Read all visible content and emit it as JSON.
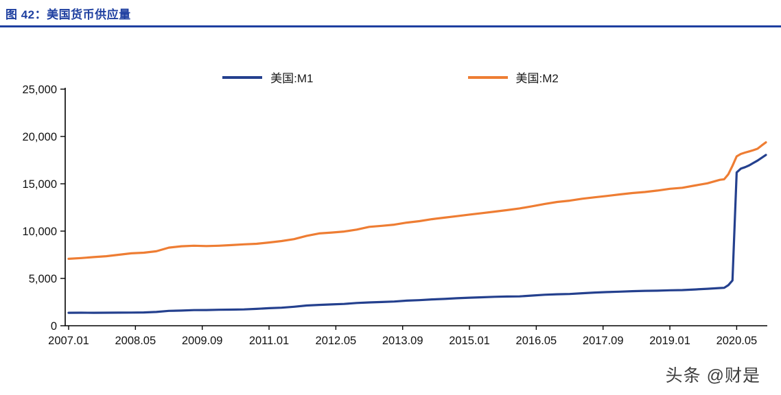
{
  "header": {
    "title": "图 42：美国货币供应量"
  },
  "watermark": "头条 @财是",
  "chart_data": {
    "type": "line",
    "title": "美国货币供应量",
    "xlabel": "",
    "ylabel": "",
    "x_unit": "months since 2007.01",
    "xlim": [
      0,
      167
    ],
    "ylim": [
      0,
      25000
    ],
    "grid": false,
    "legend_position": "top-center",
    "y_ticks": [
      {
        "v": 0,
        "label": "0"
      },
      {
        "v": 5000,
        "label": "5,000"
      },
      {
        "v": 10000,
        "label": "10,000"
      },
      {
        "v": 15000,
        "label": "15,000"
      },
      {
        "v": 20000,
        "label": "20,000"
      },
      {
        "v": 25000,
        "label": "25,000"
      }
    ],
    "x_ticks": [
      {
        "m": 0,
        "label": "2007.01"
      },
      {
        "m": 16,
        "label": "2008.05"
      },
      {
        "m": 32,
        "label": "2009.09"
      },
      {
        "m": 48,
        "label": "2011.01"
      },
      {
        "m": 64,
        "label": "2012.05"
      },
      {
        "m": 80,
        "label": "2013.09"
      },
      {
        "m": 96,
        "label": "2015.01"
      },
      {
        "m": 112,
        "label": "2016.05"
      },
      {
        "m": 128,
        "label": "2017.09"
      },
      {
        "m": 144,
        "label": "2019.01"
      },
      {
        "m": 160,
        "label": "2020.05"
      }
    ],
    "series": [
      {
        "name": "美国:M1",
        "color": "#24408e",
        "points": [
          [
            0,
            1370
          ],
          [
            3,
            1375
          ],
          [
            6,
            1370
          ],
          [
            9,
            1378
          ],
          [
            12,
            1385
          ],
          [
            15,
            1390
          ],
          [
            18,
            1405
          ],
          [
            21,
            1455
          ],
          [
            24,
            1570
          ],
          [
            27,
            1605
          ],
          [
            30,
            1650
          ],
          [
            33,
            1660
          ],
          [
            36,
            1685
          ],
          [
            39,
            1705
          ],
          [
            42,
            1725
          ],
          [
            45,
            1785
          ],
          [
            48,
            1855
          ],
          [
            51,
            1905
          ],
          [
            54,
            2005
          ],
          [
            57,
            2135
          ],
          [
            60,
            2205
          ],
          [
            63,
            2255
          ],
          [
            66,
            2305
          ],
          [
            69,
            2405
          ],
          [
            72,
            2465
          ],
          [
            75,
            2505
          ],
          [
            78,
            2555
          ],
          [
            81,
            2655
          ],
          [
            84,
            2705
          ],
          [
            87,
            2785
          ],
          [
            90,
            2835
          ],
          [
            93,
            2905
          ],
          [
            96,
            2965
          ],
          [
            99,
            3005
          ],
          [
            102,
            3055
          ],
          [
            105,
            3085
          ],
          [
            108,
            3105
          ],
          [
            111,
            3185
          ],
          [
            114,
            3275
          ],
          [
            117,
            3325
          ],
          [
            120,
            3355
          ],
          [
            123,
            3435
          ],
          [
            126,
            3505
          ],
          [
            129,
            3555
          ],
          [
            132,
            3605
          ],
          [
            135,
            3655
          ],
          [
            138,
            3685
          ],
          [
            141,
            3705
          ],
          [
            144,
            3745
          ],
          [
            147,
            3765
          ],
          [
            150,
            3835
          ],
          [
            153,
            3905
          ],
          [
            156,
            3985
          ],
          [
            157,
            4005
          ],
          [
            158,
            4280
          ],
          [
            159,
            4790
          ],
          [
            160,
            16200
          ],
          [
            161,
            16600
          ],
          [
            162,
            16750
          ],
          [
            163,
            16950
          ],
          [
            164,
            17200
          ],
          [
            165,
            17450
          ],
          [
            166,
            17750
          ],
          [
            167,
            18050
          ]
        ]
      },
      {
        "name": "美国:M2",
        "color": "#ee7d33",
        "points": [
          [
            0,
            7070
          ],
          [
            3,
            7150
          ],
          [
            6,
            7250
          ],
          [
            9,
            7350
          ],
          [
            12,
            7500
          ],
          [
            15,
            7650
          ],
          [
            18,
            7720
          ],
          [
            21,
            7870
          ],
          [
            24,
            8250
          ],
          [
            27,
            8400
          ],
          [
            30,
            8460
          ],
          [
            33,
            8420
          ],
          [
            36,
            8460
          ],
          [
            39,
            8520
          ],
          [
            42,
            8600
          ],
          [
            45,
            8660
          ],
          [
            48,
            8800
          ],
          [
            51,
            8950
          ],
          [
            54,
            9150
          ],
          [
            57,
            9500
          ],
          [
            60,
            9750
          ],
          [
            63,
            9850
          ],
          [
            66,
            9960
          ],
          [
            69,
            10160
          ],
          [
            72,
            10450
          ],
          [
            75,
            10560
          ],
          [
            78,
            10680
          ],
          [
            81,
            10900
          ],
          [
            84,
            11050
          ],
          [
            87,
            11260
          ],
          [
            90,
            11420
          ],
          [
            93,
            11580
          ],
          [
            96,
            11750
          ],
          [
            99,
            11900
          ],
          [
            102,
            12060
          ],
          [
            105,
            12220
          ],
          [
            108,
            12400
          ],
          [
            111,
            12620
          ],
          [
            114,
            12870
          ],
          [
            117,
            13080
          ],
          [
            120,
            13220
          ],
          [
            123,
            13420
          ],
          [
            126,
            13570
          ],
          [
            129,
            13720
          ],
          [
            132,
            13880
          ],
          [
            135,
            14020
          ],
          [
            138,
            14130
          ],
          [
            141,
            14280
          ],
          [
            144,
            14470
          ],
          [
            147,
            14580
          ],
          [
            150,
            14820
          ],
          [
            153,
            15050
          ],
          [
            156,
            15420
          ],
          [
            157,
            15480
          ],
          [
            158,
            16000
          ],
          [
            159,
            16900
          ],
          [
            160,
            17900
          ],
          [
            161,
            18150
          ],
          [
            162,
            18300
          ],
          [
            163,
            18420
          ],
          [
            164,
            18550
          ],
          [
            165,
            18700
          ],
          [
            166,
            19050
          ],
          [
            167,
            19380
          ]
        ]
      }
    ]
  }
}
